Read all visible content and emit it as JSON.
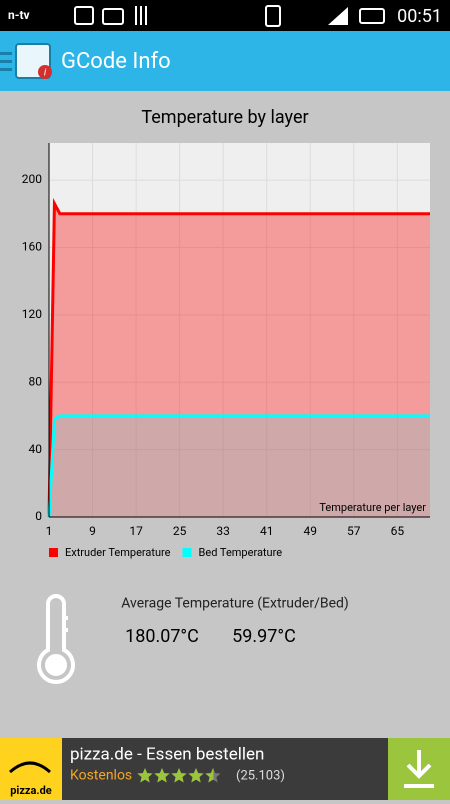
{
  "status_bar": {
    "carrier_logo": "n-tv",
    "time": "00:51"
  },
  "app_bar": {
    "title": "GCode Info"
  },
  "chart_data": {
    "type": "line",
    "title": "Temperature by layer",
    "x": [
      1,
      2,
      3,
      71
    ],
    "series": [
      {
        "name": "Extruder Temperature",
        "color": "#ff0000",
        "values": [
          0,
          186,
          180,
          180
        ]
      },
      {
        "name": "Bed Temperature",
        "color": "#00ffff",
        "values": [
          0,
          58,
          60,
          60
        ]
      }
    ],
    "xlim": [
      1,
      71
    ],
    "xticks": [
      1,
      9,
      17,
      25,
      33,
      41,
      49,
      57,
      65
    ],
    "ylim": [
      0,
      222
    ],
    "yticks": [
      0,
      40,
      80,
      120,
      160,
      200
    ],
    "annotation": "Temperature per layer",
    "grid": true,
    "fill": true,
    "legend": "bottom-left"
  },
  "summary": {
    "label": "Average Temperature (Extruder/Bed)",
    "extruder": "180.07°C",
    "bed": "59.97°C"
  },
  "ad": {
    "logo": "pizza.de",
    "title": "pizza.de - Essen bestellen",
    "price": "Kostenlos",
    "rating": 4.5,
    "reviews": "(25.103)"
  }
}
